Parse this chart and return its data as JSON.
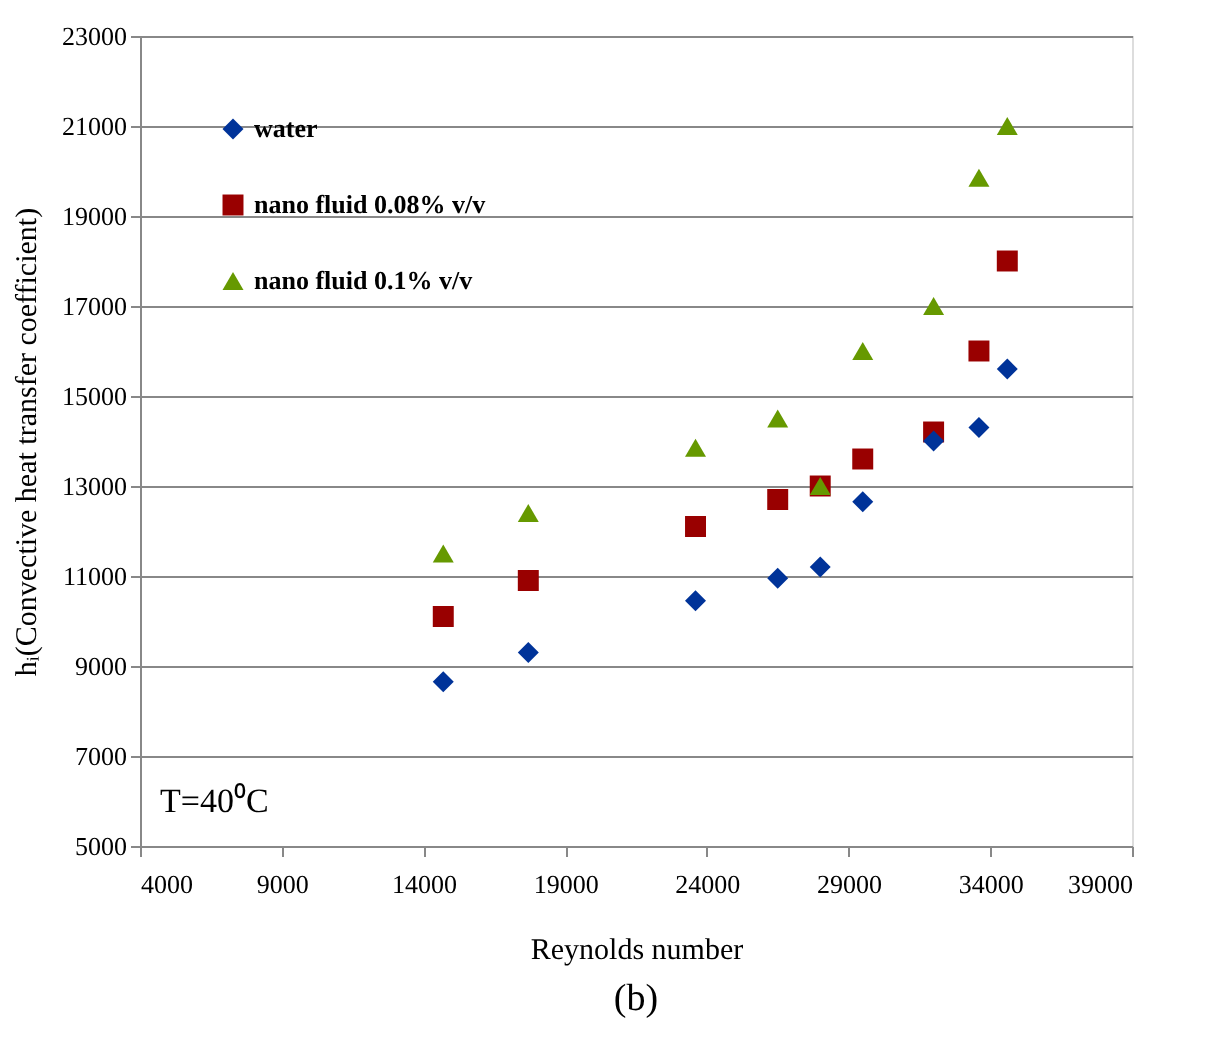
{
  "chart_data": {
    "type": "scatter",
    "title": "(b)",
    "xlabel": "Reynolds number",
    "ylabel": "hᵢ(Convective heat transfer coefficient)",
    "x": [
      14700,
      17700,
      23600,
      26500,
      28000,
      29500,
      32000,
      33600,
      34600
    ],
    "series": [
      {
        "name": "water",
        "color": "#003399",
        "marker": "diamond",
        "values": [
          8650,
          9300,
          10450,
          10950,
          11200,
          12650,
          14000,
          14300,
          15600
        ]
      },
      {
        "name": "nano fluid 0.08% v/v",
        "color": "#990000",
        "marker": "square",
        "values": [
          10100,
          10900,
          12100,
          12700,
          13000,
          13600,
          14200,
          16000,
          18000
        ]
      },
      {
        "name": "nano fluid 0.1% v/v",
        "color": "#669900",
        "marker": "triangle",
        "values": [
          11500,
          12400,
          13850,
          14500,
          13000,
          16000,
          17000,
          19850,
          21000
        ]
      }
    ],
    "xlim": [
      4000,
      39000
    ],
    "xticks": [
      4000,
      9000,
      14000,
      19000,
      24000,
      29000,
      34000,
      39000
    ],
    "ylim": [
      5000,
      23000
    ],
    "yticks": [
      5000,
      7000,
      9000,
      11000,
      13000,
      15000,
      17000,
      19000,
      21000,
      23000
    ],
    "grid": "y",
    "legend": "top left",
    "annotations": [
      "T=40⁰C"
    ]
  }
}
